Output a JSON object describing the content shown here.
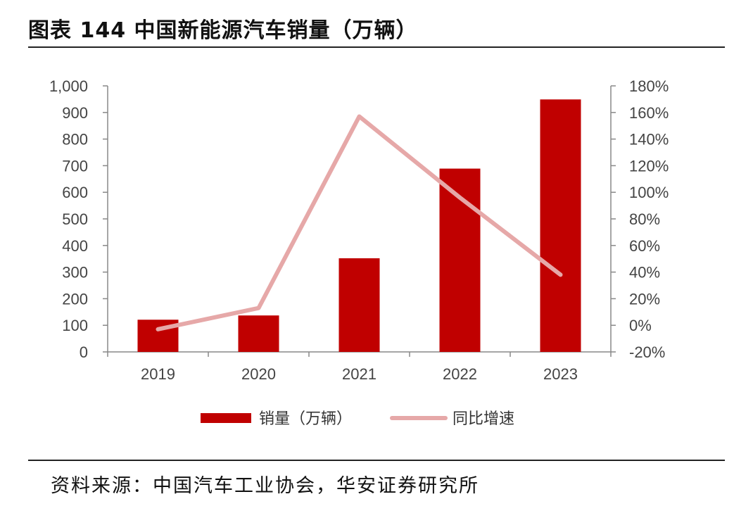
{
  "header": {
    "title": "图表 144 中国新能源汽车销量（万辆）"
  },
  "footer": {
    "source": "资料来源：中国汽车工业协会，华安证券研究所"
  },
  "chart_data": {
    "type": "bar",
    "categories": [
      "2019",
      "2020",
      "2021",
      "2022",
      "2023"
    ],
    "series": [
      {
        "name": "销量（万辆）",
        "type": "bar",
        "axis": "left",
        "color": "#c00000",
        "values": [
          121,
          137,
          352,
          689,
          949
        ]
      },
      {
        "name": "同比增速",
        "type": "line",
        "axis": "right",
        "color": "#e6a8a8",
        "values": [
          -3,
          13,
          157,
          96,
          38
        ]
      }
    ],
    "y_left": {
      "min": 0,
      "max": 1000,
      "step": 100,
      "tick_labels": [
        "0",
        "100",
        "200",
        "300",
        "400",
        "500",
        "600",
        "700",
        "800",
        "900",
        "1,000"
      ]
    },
    "y_right": {
      "min": -20,
      "max": 180,
      "step": 20,
      "tick_labels": [
        "-20%",
        "0%",
        "20%",
        "40%",
        "60%",
        "80%",
        "100%",
        "120%",
        "140%",
        "160%",
        "180%"
      ]
    },
    "grid": false,
    "legend_position": "bottom"
  }
}
